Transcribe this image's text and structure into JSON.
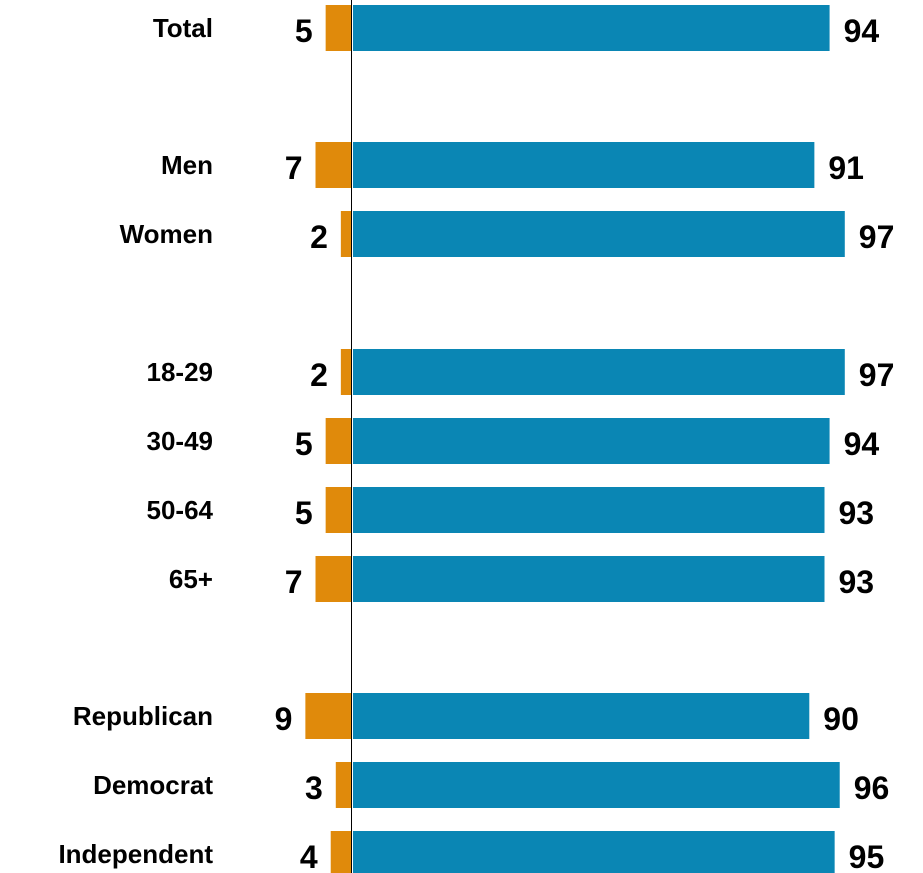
{
  "chart_data": {
    "type": "bar",
    "orientation": "horizontal",
    "diverging": true,
    "categories": [
      "Total",
      "Men",
      "Women",
      "18-29",
      "30-49",
      "50-64",
      "65+",
      "Republican",
      "Democrat",
      "Independent"
    ],
    "groups": [
      [
        "Total"
      ],
      [
        "Men",
        "Women"
      ],
      [
        "18-29",
        "30-49",
        "50-64",
        "65+"
      ],
      [
        "Republican",
        "Democrat",
        "Independent"
      ]
    ],
    "series": [
      {
        "values": [
          5,
          7,
          2,
          2,
          5,
          5,
          7,
          9,
          3,
          4
        ],
        "color": "#e08a0b",
        "side": "left"
      },
      {
        "values": [
          94,
          91,
          97,
          97,
          94,
          93,
          93,
          90,
          96,
          95
        ],
        "color": "#0a86b4",
        "side": "right"
      }
    ],
    "title": "",
    "xlabel": "",
    "ylabel": "",
    "legend": "none",
    "grid": false
  },
  "colors": {
    "baseline": "#000000",
    "background": "#ffffff"
  }
}
